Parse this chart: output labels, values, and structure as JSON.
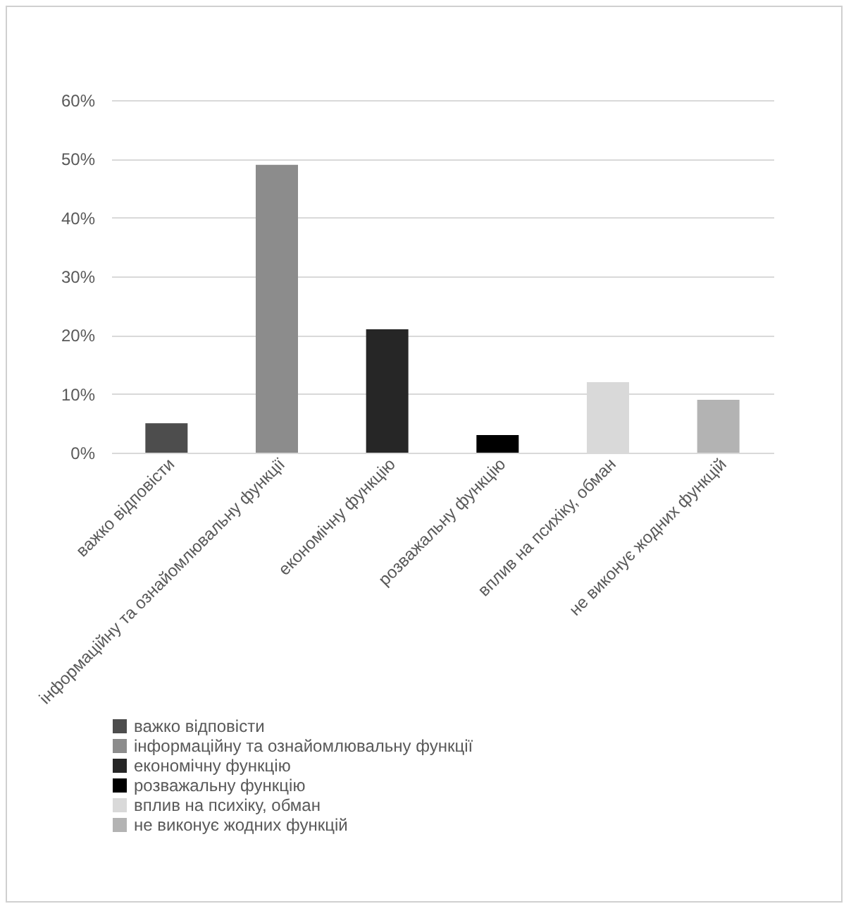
{
  "chart_data": {
    "type": "bar",
    "categories": [
      "важко відповісти",
      "інформаційну та ознайомлювальну функції",
      "економічну функцію",
      "розважальну функцію",
      "вплив на психіку, обман",
      "не виконує жодних функцій"
    ],
    "series": [
      {
        "name": "важко відповісти",
        "color": "#4d4d4d",
        "values": [
          5,
          null,
          null,
          null,
          null,
          null
        ]
      },
      {
        "name": "інформаційну та ознайомлювальну функції",
        "color": "#8c8c8c",
        "values": [
          null,
          49,
          null,
          null,
          null,
          null
        ]
      },
      {
        "name": "економічну функцію",
        "color": "#262626",
        "values": [
          null,
          null,
          21,
          null,
          null,
          null
        ]
      },
      {
        "name": "розважальну функцію",
        "color": "#000000",
        "values": [
          null,
          null,
          null,
          3,
          null,
          null
        ]
      },
      {
        "name": "вплив на психіку, обман",
        "color": "#d9d9d9",
        "values": [
          null,
          null,
          null,
          null,
          12,
          null
        ]
      },
      {
        "name": "не виконує жодних функцій",
        "color": "#b3b3b3",
        "values": [
          null,
          null,
          null,
          null,
          null,
          9
        ]
      }
    ],
    "ylim": [
      0,
      60
    ],
    "yticks": [
      {
        "value": 0,
        "label": "0%"
      },
      {
        "value": 10,
        "label": "10%"
      },
      {
        "value": 20,
        "label": "20%"
      },
      {
        "value": 30,
        "label": "30%"
      },
      {
        "value": 40,
        "label": "40%"
      },
      {
        "value": 50,
        "label": "50%"
      },
      {
        "value": 60,
        "label": "60%"
      }
    ],
    "grid": "y",
    "legend": "bottom"
  }
}
